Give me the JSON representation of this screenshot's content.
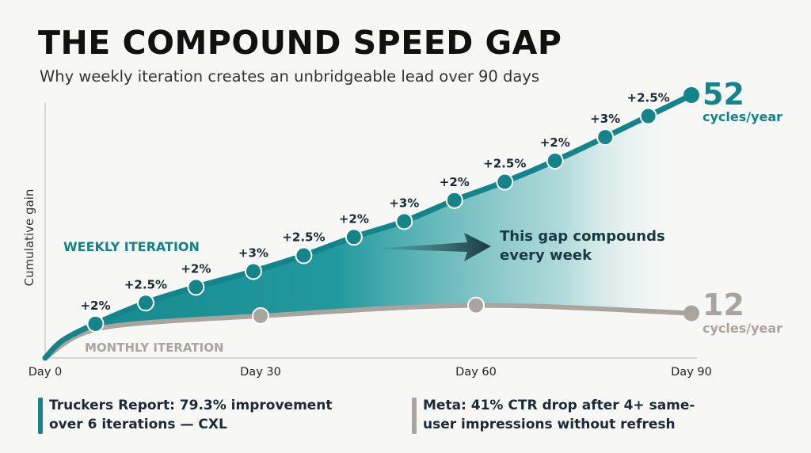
{
  "title": "THE COMPOUND SPEED GAP",
  "subtitle": "Why weekly iteration creates an unbridgeable lead over 90 days",
  "colors": {
    "weekly": "#12848a",
    "monthly": "#aaa49f",
    "text_dark": "#1c2a33",
    "annotation": "#173a44"
  },
  "chart_data": {
    "type": "line",
    "ylabel": "Cumulative gain",
    "x_ticks": [
      "Day 0",
      "Day 30",
      "Day 60",
      "Day 90"
    ],
    "xlim": [
      0,
      90
    ],
    "grid": false,
    "series": [
      {
        "name": "WEEKLY ITERATION",
        "x": [
          7,
          14,
          21,
          29,
          36,
          43,
          50,
          57,
          64,
          71,
          78,
          84,
          90
        ],
        "y": [
          13,
          21,
          27,
          33,
          39,
          46,
          52,
          60,
          67,
          75,
          84,
          92,
          100
        ],
        "labels": [
          "+2%",
          "+2.5%",
          "+2%",
          "+3%",
          "+2.5%",
          "+2%",
          "+3%",
          "+2%",
          "+2.5%",
          "+2%",
          "+3%",
          "+2.5%",
          ""
        ],
        "end_value": "52",
        "end_unit": "cycles/year"
      },
      {
        "name": "MONTHLY ITERATION",
        "x": [
          30,
          60,
          90
        ],
        "y": [
          16,
          20,
          17
        ],
        "end_value": "12",
        "end_unit": "cycles/year"
      }
    ],
    "annotation": "This gap compounds every week",
    "annotation_lines": [
      "This gap compounds",
      "every week"
    ]
  },
  "notes": [
    {
      "lines": [
        "Truckers Report: 79.3% improvement",
        "over 6 iterations — CXL"
      ],
      "color": "#12848a"
    },
    {
      "lines": [
        "Meta: 41% CTR drop after 4+ same-",
        "user impressions without refresh"
      ],
      "color": "#aaa49f"
    }
  ]
}
